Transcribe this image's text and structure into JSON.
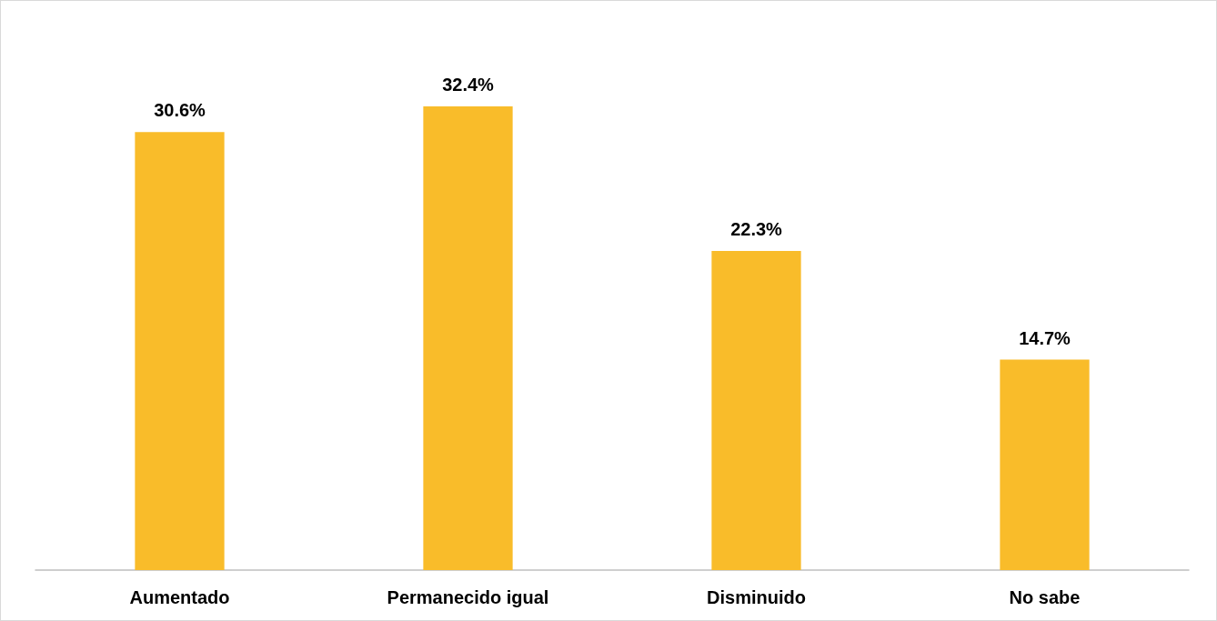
{
  "chart_data": {
    "type": "bar",
    "categories": [
      "Aumentado",
      "Permanecido igual",
      "Disminuido",
      "No sabe"
    ],
    "values": [
      30.6,
      32.4,
      22.3,
      14.7
    ],
    "value_labels": [
      "30.6%",
      "32.4%",
      "22.3%",
      "14.7%"
    ],
    "color": "#f9bc2a"
  }
}
